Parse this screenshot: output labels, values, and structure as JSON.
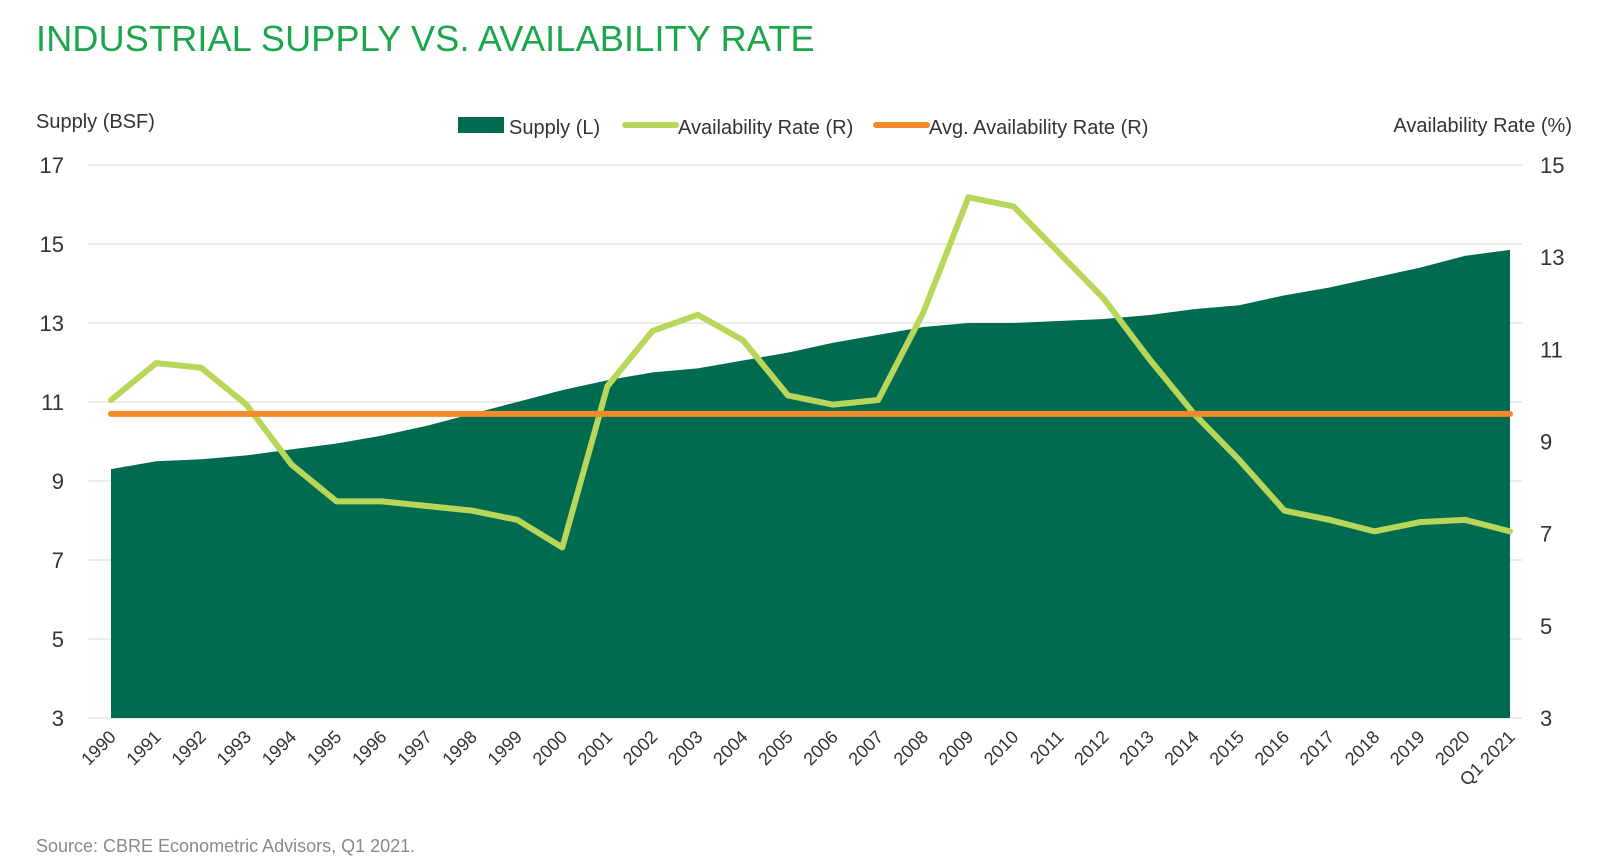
{
  "chart_data": {
    "type": "area",
    "title": "INDUSTRIAL SUPPLY VS. AVAILABILITY RATE",
    "source": "Source: CBRE Econometric Advisors, Q1 2021.",
    "left_axis_label": "Supply (BSF)",
    "right_axis_label": "Availability Rate (%)",
    "left_ylim": [
      3,
      17
    ],
    "left_ticks": [
      3,
      5,
      7,
      9,
      11,
      13,
      15,
      17
    ],
    "right_ylim": [
      3,
      15
    ],
    "right_ticks": [
      3,
      5,
      7,
      9,
      11,
      13,
      15
    ],
    "grid": true,
    "legend_position": "top-center",
    "categories": [
      "1990",
      "1991",
      "1992",
      "1993",
      "1994",
      "1995",
      "1996",
      "1997",
      "1998",
      "1999",
      "2000",
      "2001",
      "2002",
      "2003",
      "2004",
      "2005",
      "2006",
      "2007",
      "2008",
      "2009",
      "2010",
      "2011",
      "2012",
      "2013",
      "2014",
      "2015",
      "2016",
      "2017",
      "2018",
      "2019",
      "2020",
      "Q1 2021"
    ],
    "series": [
      {
        "name": "Supply (L)",
        "kind": "area",
        "axis": "left",
        "color": "#006b4f",
        "values": [
          9.3,
          9.5,
          9.55,
          9.65,
          9.8,
          9.95,
          10.15,
          10.4,
          10.7,
          11.0,
          11.3,
          11.55,
          11.75,
          11.85,
          12.05,
          12.25,
          12.5,
          12.7,
          12.9,
          13.0,
          13.0,
          13.05,
          13.1,
          13.2,
          13.35,
          13.45,
          13.7,
          13.9,
          14.15,
          14.4,
          14.7,
          14.85
        ]
      },
      {
        "name": "Availability Rate (R)",
        "kind": "line",
        "axis": "right",
        "color": "#b8d75a",
        "values": [
          9.9,
          10.7,
          10.6,
          9.8,
          8.5,
          7.7,
          7.7,
          7.6,
          7.5,
          7.3,
          6.7,
          10.2,
          11.4,
          11.75,
          11.2,
          10.0,
          9.8,
          9.9,
          11.8,
          14.3,
          14.1,
          13.1,
          12.1,
          10.8,
          9.6,
          8.6,
          7.5,
          7.3,
          7.05,
          7.25,
          7.3,
          7.05
        ]
      },
      {
        "name": "Avg. Availability Rate (R)",
        "kind": "line",
        "axis": "right",
        "color": "#f28a2b",
        "values": [
          9.6,
          9.6,
          9.6,
          9.6,
          9.6,
          9.6,
          9.6,
          9.6,
          9.6,
          9.6,
          9.6,
          9.6,
          9.6,
          9.6,
          9.6,
          9.6,
          9.6,
          9.6,
          9.6,
          9.6,
          9.6,
          9.6,
          9.6,
          9.6,
          9.6,
          9.6,
          9.6,
          9.6,
          9.6,
          9.6,
          9.6,
          9.6
        ]
      }
    ]
  }
}
